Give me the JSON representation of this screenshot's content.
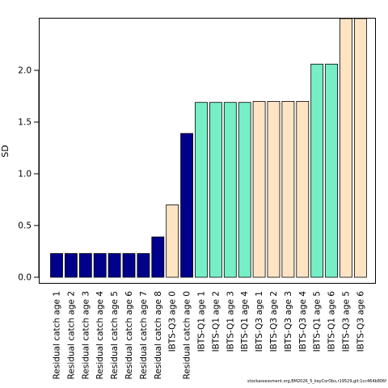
{
  "chart_data": {
    "type": "bar",
    "title": "",
    "xlabel": "",
    "ylabel": "SD",
    "ylim": [
      0,
      2.5
    ],
    "yticks": [
      "0.0",
      "0.5",
      "1.0",
      "1.5",
      "2.0"
    ],
    "grid": false,
    "legend": "none",
    "categories": [
      "Residual catch age 1",
      "Residual catch age 2",
      "Residual catch age 3",
      "Residual catch age 4",
      "Residual catch age 5",
      "Residual catch age 6",
      "Residual catch age 7",
      "Residual catch age 8",
      "IBTS-Q3 age 0",
      "Residual catch age 0",
      "IBTS-Q1 age 1",
      "IBTS-Q1 age 2",
      "IBTS-Q1 age 3",
      "IBTS-Q1 age 4",
      "IBTS-Q3 age 1",
      "IBTS-Q3 age 2",
      "IBTS-Q3 age 3",
      "IBTS-Q3 age 4",
      "IBTS-Q1 age 5",
      "IBTS-Q1 age 6",
      "IBTS-Q3 age 5",
      "IBTS-Q3 age 6"
    ],
    "values": [
      0.23,
      0.23,
      0.23,
      0.23,
      0.23,
      0.23,
      0.23,
      0.39,
      0.7,
      1.39,
      1.69,
      1.69,
      1.69,
      1.69,
      1.7,
      1.7,
      1.7,
      1.7,
      2.06,
      2.06,
      2.5,
      2.5
    ],
    "groups": [
      "catch",
      "catch",
      "catch",
      "catch",
      "catch",
      "catch",
      "catch",
      "catch",
      "q3",
      "catch",
      "q1",
      "q1",
      "q1",
      "q1",
      "q3",
      "q3",
      "q3",
      "q3",
      "q1",
      "q1",
      "q3",
      "q3"
    ],
    "colors": {
      "catch": "#00008b",
      "q1": "#76eec6",
      "q3": "#ffe4c4",
      "border": "#000000"
    }
  },
  "footnote": "stockassessment.org,BM2026_5_keyCorObs,r19529,git:1cc464b806f"
}
